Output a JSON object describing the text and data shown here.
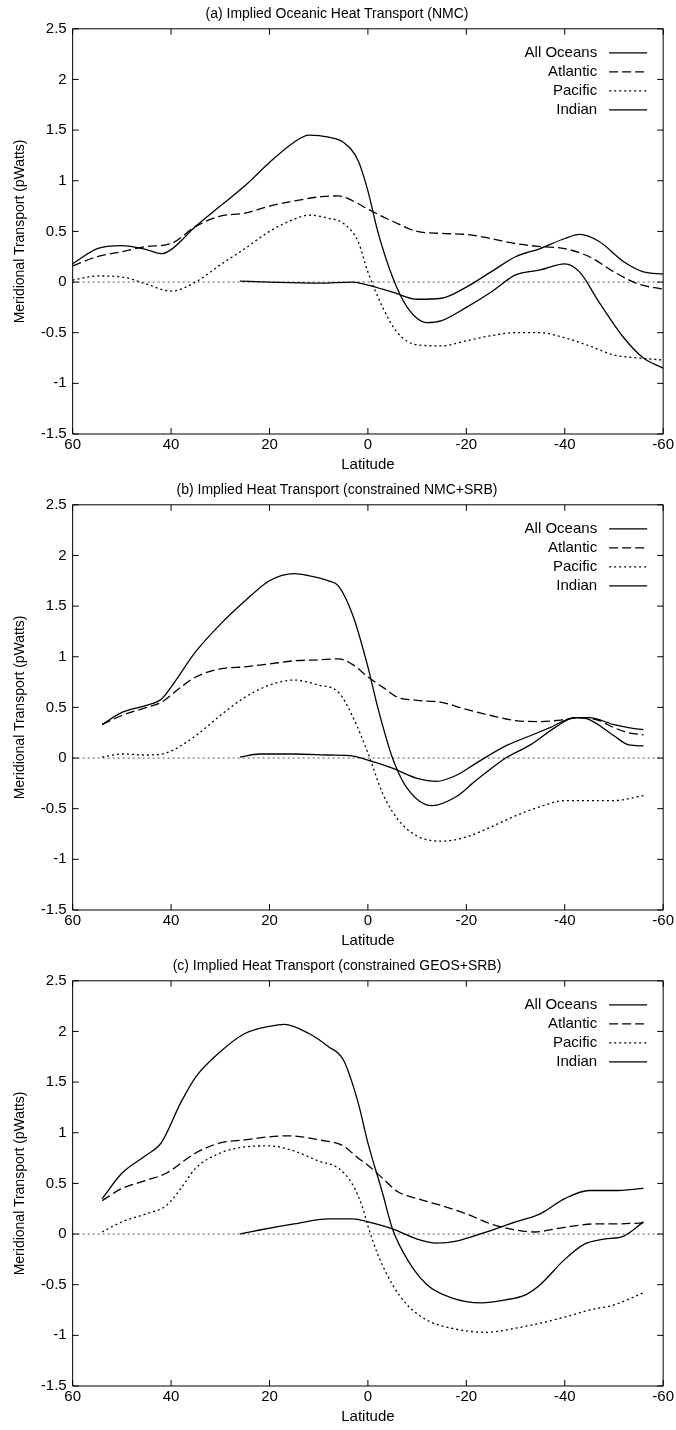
{
  "chart_data": [
    {
      "type": "line",
      "title": "(a) Implied Oceanic Heat Transport (NMC)",
      "xlabel": "Latitude",
      "ylabel": "Meridional Transport (pWatts)",
      "xlim": [
        60,
        -60
      ],
      "xticks": [
        60,
        40,
        20,
        0,
        -20,
        -40,
        -60
      ],
      "ylim": [
        -1.5,
        2.5
      ],
      "yticks": [
        -1.5,
        -1,
        -0.5,
        0,
        0.5,
        1,
        1.5,
        2,
        2.5
      ],
      "grid": false,
      "legend": "top right",
      "marker": "none",
      "ref_lines": [
        {
          "axis": "y",
          "value": 0,
          "color": "#555555",
          "line_style": "dotted"
        }
      ],
      "series": [
        {
          "name": "All Oceans",
          "color": "#000000",
          "line_style": "solid",
          "x": [
            60,
            55,
            50,
            45,
            42,
            40,
            35,
            30,
            25,
            20,
            15,
            12,
            8,
            5,
            2,
            0,
            -2,
            -5,
            -8,
            -12,
            -15,
            -20,
            -25,
            -30,
            -35,
            -40,
            -43,
            -47,
            -52,
            -56,
            -60
          ],
          "values": [
            0.18,
            0.33,
            0.36,
            0.32,
            0.28,
            0.32,
            0.55,
            0.75,
            0.95,
            1.18,
            1.38,
            1.45,
            1.43,
            1.38,
            1.2,
            0.9,
            0.5,
            0.05,
            -0.25,
            -0.4,
            -0.38,
            -0.25,
            -0.1,
            0.07,
            0.12,
            0.18,
            0.1,
            -0.2,
            -0.55,
            -0.75,
            -0.85
          ]
        },
        {
          "name": "Atlantic",
          "color": "#000000",
          "line_style": "dashed",
          "x": [
            60,
            55,
            50,
            45,
            40,
            35,
            30,
            25,
            20,
            15,
            10,
            6,
            3,
            0,
            -5,
            -10,
            -15,
            -20,
            -25,
            -30,
            -35,
            -40,
            -45,
            -50,
            -55,
            -60
          ],
          "values": [
            0.16,
            0.25,
            0.3,
            0.35,
            0.38,
            0.55,
            0.65,
            0.68,
            0.75,
            0.8,
            0.84,
            0.85,
            0.8,
            0.72,
            0.6,
            0.5,
            0.48,
            0.47,
            0.43,
            0.38,
            0.35,
            0.33,
            0.25,
            0.1,
            -0.02,
            -0.07
          ]
        },
        {
          "name": "Pacific",
          "color": "#000000",
          "line_style": "dotted",
          "x": [
            60,
            55,
            50,
            45,
            40,
            35,
            30,
            25,
            20,
            15,
            12,
            8,
            5,
            2,
            0,
            -3,
            -6,
            -10,
            -15,
            -20,
            -25,
            -30,
            -35,
            -40,
            -45,
            -50,
            -55,
            -60
          ],
          "values": [
            0.02,
            0.06,
            0.05,
            -0.02,
            -0.09,
            0.0,
            0.17,
            0.33,
            0.5,
            0.62,
            0.66,
            0.63,
            0.58,
            0.4,
            0.1,
            -0.25,
            -0.5,
            -0.62,
            -0.63,
            -0.58,
            -0.53,
            -0.5,
            -0.5,
            -0.55,
            -0.63,
            -0.72,
            -0.75,
            -0.77
          ]
        },
        {
          "name": "Indian",
          "color": "#000000",
          "line_style": "solid",
          "x": [
            26,
            20,
            10,
            3,
            0,
            -5,
            -10,
            -15,
            -20,
            -25,
            -30,
            -35,
            -40,
            -43,
            -47,
            -52,
            -56,
            -60
          ],
          "values": [
            0.01,
            0.0,
            -0.01,
            0.0,
            -0.03,
            -0.1,
            -0.17,
            -0.16,
            -0.05,
            0.1,
            0.25,
            0.33,
            0.43,
            0.47,
            0.4,
            0.2,
            0.1,
            0.08
          ]
        }
      ]
    },
    {
      "type": "line",
      "title": "(b) Implied Heat Transport (constrained NMC+SRB)",
      "xlabel": "Latitude",
      "ylabel": "Meridional Transport (pWatts)",
      "xlim": [
        60,
        -60
      ],
      "xticks": [
        60,
        40,
        20,
        0,
        -20,
        -40,
        -60
      ],
      "ylim": [
        -1.5,
        2.5
      ],
      "yticks": [
        -1.5,
        -1,
        -0.5,
        0,
        0.5,
        1,
        1.5,
        2,
        2.5
      ],
      "grid": false,
      "legend": "top right",
      "marker": "none",
      "ref_lines": [
        {
          "axis": "y",
          "value": 0,
          "color": "#555555",
          "line_style": "dotted"
        }
      ],
      "series": [
        {
          "name": "All Oceans",
          "color": "#000000",
          "line_style": "solid",
          "x": [
            54,
            50,
            45,
            42,
            40,
            35,
            30,
            25,
            20,
            15,
            12,
            8,
            6,
            3,
            0,
            -2,
            -5,
            -8,
            -13,
            -18,
            -22,
            -28,
            -33,
            -38,
            -42,
            -45,
            -50,
            -53,
            -56
          ],
          "values": [
            0.33,
            0.45,
            0.52,
            0.58,
            0.7,
            1.05,
            1.32,
            1.55,
            1.75,
            1.82,
            1.8,
            1.75,
            1.7,
            1.4,
            0.9,
            0.5,
            0.0,
            -0.3,
            -0.47,
            -0.38,
            -0.22,
            0.0,
            0.13,
            0.3,
            0.4,
            0.38,
            0.22,
            0.13,
            0.12
          ]
        },
        {
          "name": "Atlantic",
          "color": "#000000",
          "line_style": "dashed",
          "x": [
            54,
            50,
            45,
            42,
            38,
            35,
            30,
            25,
            20,
            15,
            10,
            6,
            3,
            0,
            -3,
            -6,
            -10,
            -15,
            -20,
            -25,
            -30,
            -35,
            -40,
            -43,
            -47,
            -50,
            -53,
            -56
          ],
          "values": [
            0.33,
            0.42,
            0.5,
            0.55,
            0.7,
            0.8,
            0.88,
            0.9,
            0.93,
            0.96,
            0.97,
            0.98,
            0.92,
            0.8,
            0.7,
            0.6,
            0.57,
            0.55,
            0.48,
            0.42,
            0.37,
            0.36,
            0.38,
            0.4,
            0.37,
            0.3,
            0.25,
            0.23
          ]
        },
        {
          "name": "Pacific",
          "color": "#000000",
          "line_style": "dotted",
          "x": [
            54,
            50,
            45,
            41,
            35,
            30,
            25,
            20,
            15,
            10,
            6,
            3,
            0,
            -3,
            -6,
            -10,
            -15,
            -20,
            -25,
            -30,
            -35,
            -40,
            -45,
            -50,
            -56
          ],
          "values": [
            0.01,
            0.04,
            0.03,
            0.05,
            0.22,
            0.42,
            0.6,
            0.72,
            0.77,
            0.72,
            0.65,
            0.4,
            0.05,
            -0.35,
            -0.6,
            -0.77,
            -0.82,
            -0.78,
            -0.68,
            -0.57,
            -0.48,
            -0.42,
            -0.42,
            -0.42,
            -0.37
          ]
        },
        {
          "name": "Indian",
          "color": "#000000",
          "line_style": "solid",
          "x": [
            26,
            22,
            15,
            8,
            3,
            0,
            -5,
            -10,
            -14,
            -18,
            -22,
            -28,
            -33,
            -37,
            -42,
            -45,
            -50,
            -53,
            -56
          ],
          "values": [
            0.01,
            0.04,
            0.04,
            0.03,
            0.02,
            -0.02,
            -0.1,
            -0.2,
            -0.23,
            -0.17,
            -0.05,
            0.12,
            0.22,
            0.3,
            0.4,
            0.4,
            0.33,
            0.3,
            0.28
          ]
        }
      ]
    },
    {
      "type": "line",
      "title": "(c) Implied Heat Transport (constrained GEOS+SRB)",
      "xlabel": "Latitude",
      "ylabel": "Meridional Transport (pWatts)",
      "xlim": [
        60,
        -60
      ],
      "xticks": [
        60,
        40,
        20,
        0,
        -20,
        -40,
        -60
      ],
      "ylim": [
        -1.5,
        2.5
      ],
      "yticks": [
        -1.5,
        -1,
        -0.5,
        0,
        0.5,
        1,
        1.5,
        2,
        2.5
      ],
      "grid": false,
      "legend": "top right",
      "marker": "none",
      "ref_lines": [
        {
          "axis": "y",
          "value": 0,
          "color": "#555555",
          "line_style": "dotted"
        }
      ],
      "series": [
        {
          "name": "All Oceans",
          "color": "#000000",
          "line_style": "solid",
          "x": [
            54,
            50,
            45,
            42,
            38,
            35,
            30,
            25,
            20,
            17,
            12,
            8,
            5,
            2,
            0,
            -3,
            -5,
            -8,
            -12,
            -17,
            -23,
            -28,
            -32,
            -35,
            -40,
            -44,
            -48,
            -52,
            -56
          ],
          "values": [
            0.35,
            0.6,
            0.78,
            0.9,
            1.3,
            1.55,
            1.8,
            1.98,
            2.05,
            2.07,
            1.98,
            1.85,
            1.72,
            1.3,
            0.9,
            0.4,
            0.05,
            -0.25,
            -0.5,
            -0.63,
            -0.68,
            -0.65,
            -0.6,
            -0.5,
            -0.25,
            -0.1,
            -0.05,
            -0.02,
            0.12
          ]
        },
        {
          "name": "Atlantic",
          "color": "#000000",
          "line_style": "dashed",
          "x": [
            54,
            50,
            45,
            41,
            35,
            30,
            25,
            20,
            16,
            10,
            5,
            2,
            0,
            -3,
            -6,
            -10,
            -15,
            -20,
            -25,
            -30,
            -34,
            -38,
            -42,
            -46,
            -50,
            -56
          ],
          "values": [
            0.33,
            0.45,
            0.53,
            0.6,
            0.8,
            0.9,
            0.93,
            0.96,
            0.97,
            0.93,
            0.87,
            0.75,
            0.68,
            0.55,
            0.42,
            0.35,
            0.28,
            0.2,
            0.1,
            0.04,
            0.02,
            0.05,
            0.08,
            0.1,
            0.1,
            0.11
          ]
        },
        {
          "name": "Pacific",
          "color": "#000000",
          "line_style": "dotted",
          "x": [
            54,
            50,
            45,
            41,
            38,
            35,
            30,
            25,
            20,
            15,
            10,
            6,
            3,
            1,
            0,
            -2,
            -5,
            -8,
            -12,
            -17,
            -24,
            -30,
            -35,
            -40,
            -45,
            -50,
            -56
          ],
          "values": [
            0.02,
            0.12,
            0.2,
            0.28,
            0.45,
            0.65,
            0.8,
            0.86,
            0.87,
            0.82,
            0.72,
            0.65,
            0.48,
            0.25,
            0.08,
            -0.2,
            -0.5,
            -0.7,
            -0.85,
            -0.93,
            -0.97,
            -0.93,
            -0.88,
            -0.82,
            -0.75,
            -0.7,
            -0.58
          ]
        },
        {
          "name": "Indian",
          "color": "#000000",
          "line_style": "solid",
          "x": [
            26,
            22,
            15,
            8,
            3,
            0,
            -5,
            -10,
            -14,
            -18,
            -24,
            -30,
            -35,
            -40,
            -45,
            -50,
            -56
          ],
          "values": [
            0.0,
            0.04,
            0.1,
            0.15,
            0.15,
            0.12,
            0.05,
            -0.05,
            -0.09,
            -0.07,
            0.02,
            0.12,
            0.2,
            0.35,
            0.43,
            0.43,
            0.45
          ]
        }
      ]
    }
  ]
}
